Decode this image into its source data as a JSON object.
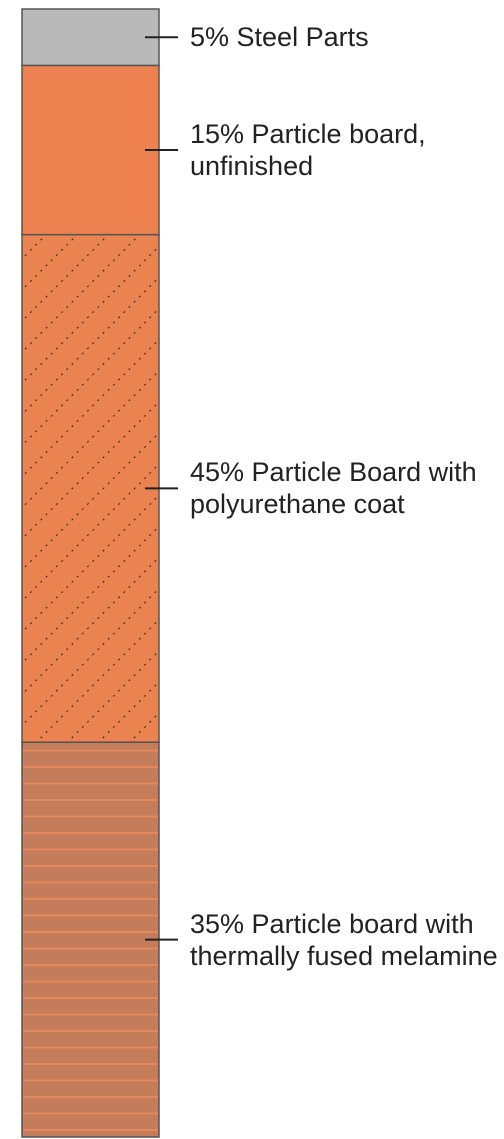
{
  "chart_data": {
    "type": "stacked-column",
    "values": [
      35,
      45,
      15,
      5
    ],
    "value_labels": [
      "35% Particle board with thermally fused melamine",
      "45% Particle Board with polyurethane coat",
      "15% Particle board, unfinished",
      "5% Steel Parts"
    ],
    "colors": [
      "#c47d5a",
      "#ea8350",
      "#ed8150",
      "#b9b9b9"
    ],
    "patterns": [
      "horizontal-stripes",
      "dotted-diagonal",
      "none",
      "none"
    ],
    "ylim": [
      0,
      100
    ]
  }
}
